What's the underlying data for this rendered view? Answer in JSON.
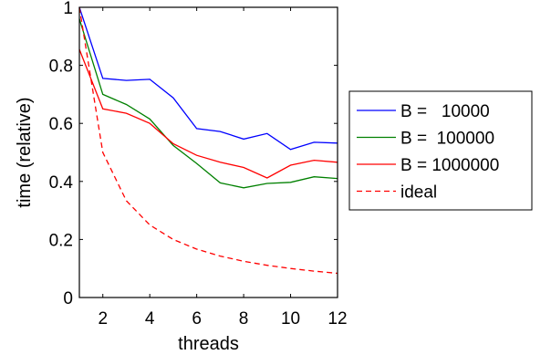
{
  "chart_data": {
    "type": "line",
    "xlabel": "threads",
    "ylabel": "time (relative)",
    "xlim": [
      1,
      12
    ],
    "ylim": [
      0,
      1
    ],
    "xticks": [
      2,
      4,
      6,
      8,
      10,
      12
    ],
    "yticks": [
      0,
      0.2,
      0.4,
      0.6,
      0.8,
      1
    ],
    "ytick_labels": [
      "0",
      "0.2",
      "0.4",
      "0.6",
      "0.8",
      "1"
    ],
    "grid": false,
    "legend_position": "right-outside",
    "x": [
      1,
      2,
      3,
      4,
      5,
      6,
      7,
      8,
      9,
      10,
      11,
      12
    ],
    "series": [
      {
        "name": "B =   10000",
        "color": "#0000ff",
        "dash": "solid",
        "values": [
          1.0,
          0.755,
          0.748,
          0.752,
          0.688,
          0.582,
          0.572,
          0.546,
          0.565,
          0.51,
          0.535,
          0.532
        ]
      },
      {
        "name": "B =  100000",
        "color": "#008000",
        "dash": "solid",
        "values": [
          0.96,
          0.7,
          0.665,
          0.615,
          0.524,
          0.462,
          0.395,
          0.378,
          0.393,
          0.397,
          0.416,
          0.41
        ]
      },
      {
        "name": "B = 1000000",
        "color": "#ff0000",
        "dash": "solid",
        "values": [
          0.855,
          0.65,
          0.635,
          0.6,
          0.53,
          0.49,
          0.466,
          0.448,
          0.412,
          0.456,
          0.473,
          0.466
        ]
      },
      {
        "name": "ideal",
        "color": "#ff0000",
        "dash": "dashed",
        "values": [
          1.0,
          0.5,
          0.3333,
          0.25,
          0.2,
          0.1667,
          0.1429,
          0.125,
          0.1111,
          0.1,
          0.0909,
          0.0833
        ]
      }
    ]
  }
}
